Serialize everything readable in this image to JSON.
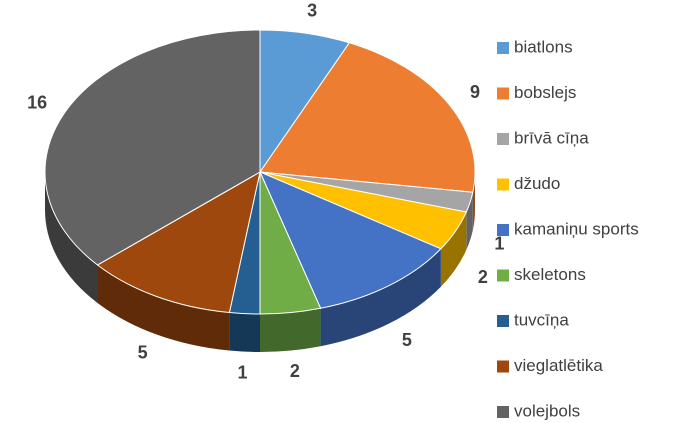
{
  "chart_data": {
    "type": "pie",
    "categories": [
      "biatlons",
      "bobslejs",
      "brīvā cīņa",
      "džudo",
      "kamaniņu sports",
      "skeletons",
      "tuvcīņa",
      "vieglatlētika",
      "volejbols"
    ],
    "values": [
      3,
      9,
      1,
      2,
      5,
      2,
      1,
      5,
      16
    ],
    "colors": [
      "#5b9bd5",
      "#ed7d31",
      "#a5a5a5",
      "#ffc000",
      "#4472c4",
      "#70ad47",
      "#255e91",
      "#9e480e",
      "#636363"
    ],
    "legend": "right"
  }
}
